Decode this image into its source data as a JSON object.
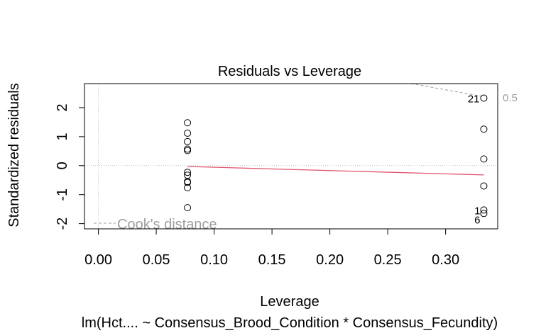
{
  "chart_data": {
    "type": "scatter",
    "title": "Residuals vs Leverage",
    "xlabel": "Leverage",
    "ylabel": "Standardized residuals",
    "subtitle": "lm(Hct.... ~ Consensus_Brood_Condition * Consensus_Fecundity)",
    "xlim": [
      -0.012,
      0.345
    ],
    "ylim": [
      -2.18,
      2.83
    ],
    "x_ticks": [
      0.0,
      0.05,
      0.1,
      0.15,
      0.2,
      0.25,
      0.3
    ],
    "x_tick_labels": [
      "0.00",
      "0.05",
      "0.10",
      "0.15",
      "0.20",
      "0.25",
      "0.30"
    ],
    "y_ticks": [
      -2,
      -1,
      0,
      1,
      2
    ],
    "y_tick_labels": [
      "-2",
      "-1",
      "0",
      "1",
      "2"
    ],
    "points": [
      {
        "x": 0.077,
        "y": 1.48
      },
      {
        "x": 0.077,
        "y": 1.12
      },
      {
        "x": 0.077,
        "y": 0.83
      },
      {
        "x": 0.077,
        "y": 0.57
      },
      {
        "x": 0.077,
        "y": 0.52
      },
      {
        "x": 0.077,
        "y": -0.23
      },
      {
        "x": 0.077,
        "y": -0.33
      },
      {
        "x": 0.077,
        "y": -0.55
      },
      {
        "x": 0.077,
        "y": -0.58
      },
      {
        "x": 0.077,
        "y": -0.76
      },
      {
        "x": 0.077,
        "y": -1.45
      },
      {
        "x": 0.333,
        "y": 2.33
      },
      {
        "x": 0.333,
        "y": 1.26
      },
      {
        "x": 0.333,
        "y": 0.23
      },
      {
        "x": 0.333,
        "y": -0.7
      },
      {
        "x": 0.333,
        "y": -1.53
      },
      {
        "x": 0.333,
        "y": -1.65
      }
    ],
    "point_labels": [
      {
        "text": "21",
        "x": 0.333,
        "y": 2.33
      },
      {
        "text": "1",
        "x": 0.333,
        "y": -1.53
      },
      {
        "text": "6",
        "x": 0.333,
        "y": -1.65
      }
    ],
    "smoother": [
      {
        "x": 0.077,
        "y": -0.03
      },
      {
        "x": 0.333,
        "y": -0.32
      }
    ],
    "cooks_contour_level": "0.5",
    "cooks_contour": [
      {
        "x": 0.27,
        "y": 2.83
      },
      {
        "x": 0.333,
        "y": 2.38
      }
    ],
    "legend": {
      "label": "Cook's distance",
      "position": "bottom-left"
    },
    "grid": false,
    "colors": {
      "points": "#000000",
      "smoother": "#DF536B",
      "cooks": "#9E9E9E",
      "ref_lines": "#BEBEBE"
    }
  }
}
